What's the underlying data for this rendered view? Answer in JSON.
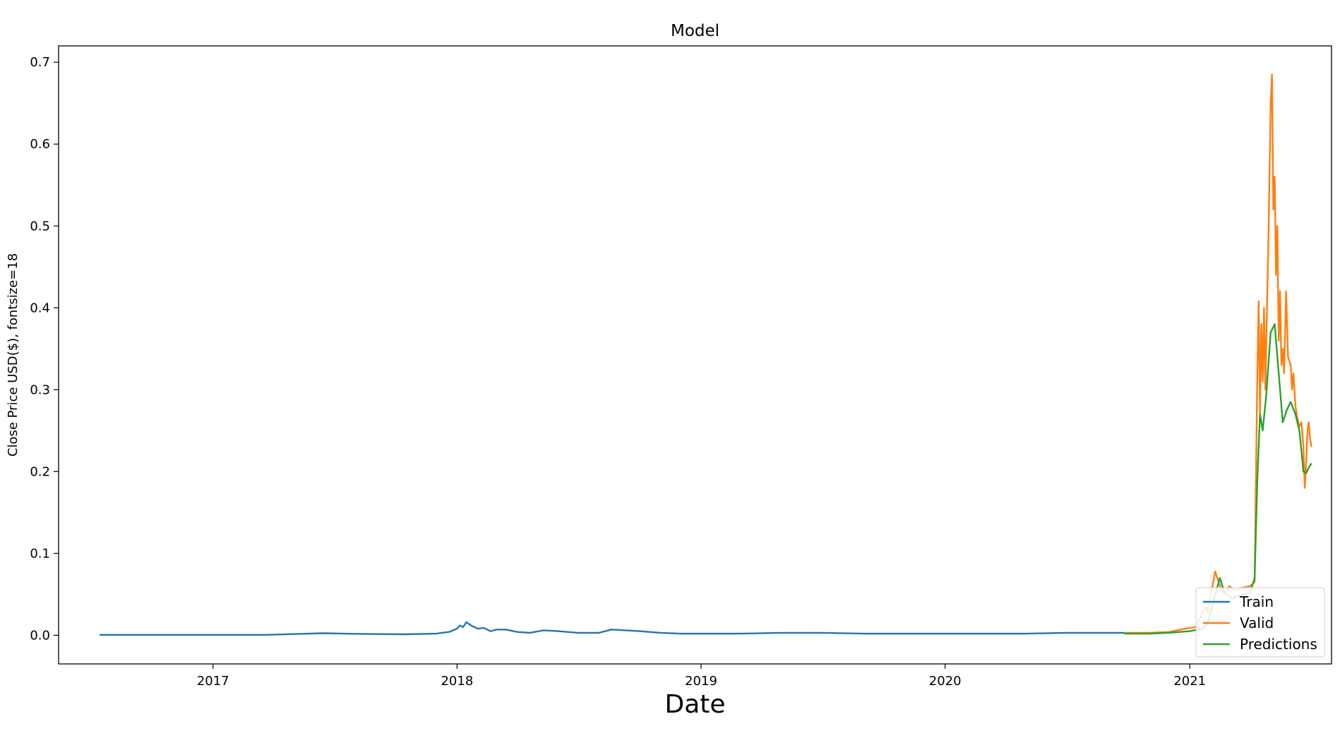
{
  "chart_data": {
    "type": "line",
    "title": "Model",
    "xlabel": "Date",
    "ylabel": "Close Price USD($), fontsize=18",
    "xlim": [
      "2016-05-15",
      "2021-08-01"
    ],
    "ylim": [
      -0.035,
      0.72
    ],
    "x_ticks": [
      "2017",
      "2018",
      "2019",
      "2020",
      "2021"
    ],
    "y_ticks": [
      "0.0",
      "0.1",
      "0.2",
      "0.3",
      "0.4",
      "0.5",
      "0.6",
      "0.7"
    ],
    "grid": false,
    "legend_position": "lower-right",
    "colors": {
      "train": "#1f77b4",
      "valid": "#ff7f0e",
      "predictions": "#2ca02c"
    },
    "series": [
      {
        "name": "Train",
        "x": [
          "2016-07-15",
          "2016-10-01",
          "2017-01-01",
          "2017-03-20",
          "2017-05-01",
          "2017-06-15",
          "2017-07-15",
          "2017-09-01",
          "2017-10-15",
          "2017-12-01",
          "2017-12-20",
          "2018-01-01",
          "2018-01-05",
          "2018-01-10",
          "2018-01-15",
          "2018-01-22",
          "2018-02-01",
          "2018-02-10",
          "2018-02-20",
          "2018-03-01",
          "2018-03-15",
          "2018-04-01",
          "2018-04-20",
          "2018-05-10",
          "2018-06-01",
          "2018-07-01",
          "2018-08-01",
          "2018-08-20",
          "2018-09-10",
          "2018-10-01",
          "2018-11-01",
          "2018-12-01",
          "2019-01-01",
          "2019-03-01",
          "2019-05-01",
          "2019-07-01",
          "2019-09-01",
          "2019-11-01",
          "2020-01-01",
          "2020-03-01",
          "2020-05-01",
          "2020-07-01",
          "2020-09-01",
          "2020-09-25"
        ],
        "values": [
          0.0005,
          0.0005,
          0.0005,
          0.0005,
          0.0015,
          0.0025,
          0.002,
          0.0015,
          0.0012,
          0.002,
          0.004,
          0.008,
          0.012,
          0.01,
          0.016,
          0.012,
          0.008,
          0.009,
          0.005,
          0.007,
          0.007,
          0.004,
          0.003,
          0.006,
          0.005,
          0.003,
          0.003,
          0.007,
          0.006,
          0.005,
          0.003,
          0.002,
          0.002,
          0.002,
          0.003,
          0.003,
          0.002,
          0.002,
          0.002,
          0.002,
          0.002,
          0.003,
          0.003,
          0.003
        ]
      },
      {
        "name": "Valid",
        "x": [
          "2020-09-25",
          "2020-11-01",
          "2020-12-01",
          "2020-12-25",
          "2021-01-10",
          "2021-01-25",
          "2021-01-28",
          "2021-02-01",
          "2021-02-04",
          "2021-02-08",
          "2021-02-12",
          "2021-02-16",
          "2021-02-22",
          "2021-03-01",
          "2021-03-10",
          "2021-03-20",
          "2021-04-01",
          "2021-04-08",
          "2021-04-12",
          "2021-04-14",
          "2021-04-16",
          "2021-04-18",
          "2021-04-20",
          "2021-04-22",
          "2021-04-24",
          "2021-04-26",
          "2021-04-29",
          "2021-05-02",
          "2021-05-04",
          "2021-05-06",
          "2021-05-08",
          "2021-05-10",
          "2021-05-12",
          "2021-05-14",
          "2021-05-16",
          "2021-05-18",
          "2021-05-20",
          "2021-05-22",
          "2021-05-25",
          "2021-05-28",
          "2021-06-01",
          "2021-06-03",
          "2021-06-05",
          "2021-06-08",
          "2021-06-11",
          "2021-06-14",
          "2021-06-17",
          "2021-06-20",
          "2021-06-22",
          "2021-06-24",
          "2021-06-26",
          "2021-06-28",
          "2021-06-30",
          "2021-07-02"
        ],
        "values": [
          0.003,
          0.003,
          0.004,
          0.008,
          0.01,
          0.035,
          0.028,
          0.05,
          0.06,
          0.078,
          0.068,
          0.058,
          0.05,
          0.06,
          0.055,
          0.058,
          0.06,
          0.065,
          0.32,
          0.408,
          0.27,
          0.38,
          0.31,
          0.4,
          0.3,
          0.38,
          0.5,
          0.65,
          0.685,
          0.52,
          0.56,
          0.44,
          0.5,
          0.36,
          0.42,
          0.33,
          0.35,
          0.32,
          0.42,
          0.34,
          0.33,
          0.3,
          0.32,
          0.28,
          0.265,
          0.255,
          0.26,
          0.23,
          0.18,
          0.21,
          0.25,
          0.26,
          0.24,
          0.23
        ]
      },
      {
        "name": "Predictions",
        "x": [
          "2020-09-25",
          "2020-11-01",
          "2020-12-01",
          "2021-01-01",
          "2021-01-20",
          "2021-01-28",
          "2021-02-08",
          "2021-02-15",
          "2021-02-22",
          "2021-03-05",
          "2021-03-20",
          "2021-04-01",
          "2021-04-08",
          "2021-04-12",
          "2021-04-16",
          "2021-04-20",
          "2021-04-25",
          "2021-05-02",
          "2021-05-08",
          "2021-05-14",
          "2021-05-20",
          "2021-05-26",
          "2021-06-01",
          "2021-06-08",
          "2021-06-14",
          "2021-06-20",
          "2021-06-24",
          "2021-06-28",
          "2021-07-02"
        ],
        "values": [
          0.002,
          0.002,
          0.003,
          0.005,
          0.008,
          0.015,
          0.05,
          0.07,
          0.052,
          0.045,
          0.05,
          0.052,
          0.07,
          0.19,
          0.27,
          0.25,
          0.29,
          0.37,
          0.38,
          0.32,
          0.26,
          0.275,
          0.285,
          0.27,
          0.25,
          0.2,
          0.198,
          0.205,
          0.21
        ]
      }
    ]
  }
}
